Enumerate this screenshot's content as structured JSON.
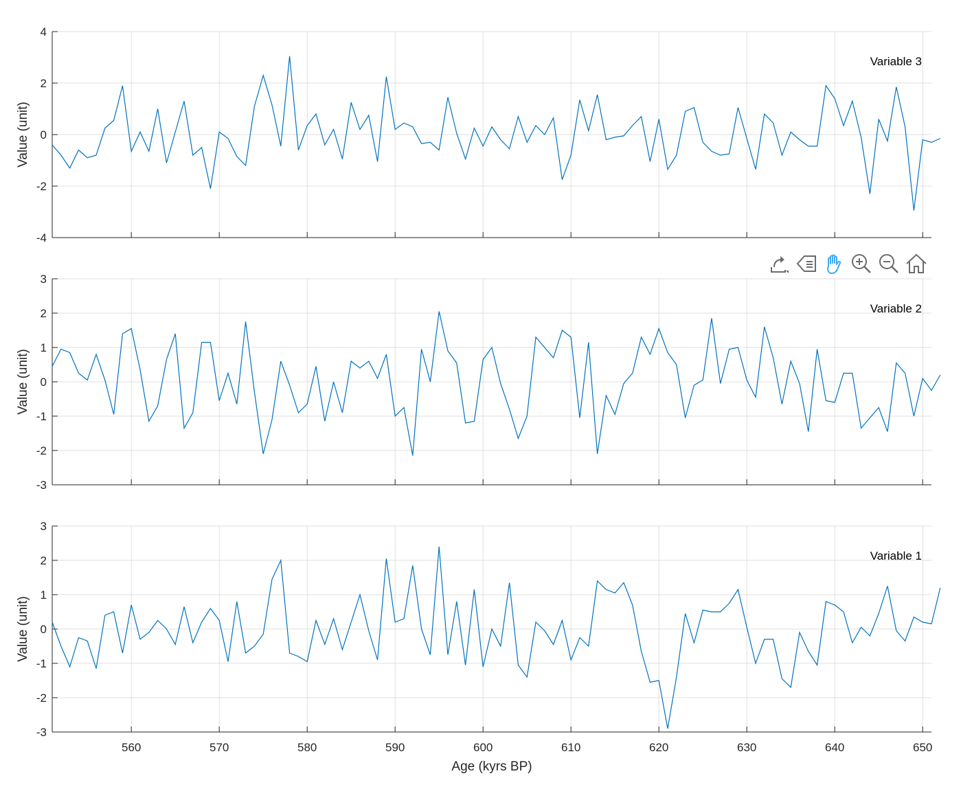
{
  "chart_data": [
    {
      "type": "line",
      "annotation": "Variable 3",
      "ylabel": "Value (unit)",
      "xlim": [
        551,
        651
      ],
      "ylim": [
        -4,
        4
      ],
      "yticks": [
        -4,
        -2,
        0,
        2,
        4
      ],
      "grid": true,
      "color": "#0072BD",
      "x_start": 551,
      "x_step": 1,
      "values": [
        -0.4,
        -0.8,
        -1.3,
        -0.6,
        -0.9,
        -0.8,
        0.25,
        0.55,
        1.9,
        -0.65,
        0.1,
        -0.65,
        1.0,
        -1.1,
        0.1,
        1.3,
        -0.8,
        -0.5,
        -2.1,
        0.1,
        -0.15,
        -0.85,
        -1.2,
        1.1,
        2.3,
        1.15,
        -0.45,
        3.05,
        -0.6,
        0.35,
        0.8,
        -0.4,
        0.2,
        -0.95,
        1.25,
        0.2,
        0.75,
        -1.05,
        2.25,
        0.2,
        0.45,
        0.3,
        -0.35,
        -0.3,
        -0.6,
        1.45,
        0.05,
        -0.95,
        0.25,
        -0.45,
        0.3,
        -0.2,
        -0.55,
        0.7,
        -0.3,
        0.35,
        0.0,
        0.65,
        -1.75,
        -0.8,
        1.35,
        0.15,
        1.55,
        -0.2,
        -0.1,
        -0.05,
        0.35,
        0.7,
        -1.05,
        0.6,
        -1.35,
        -0.8,
        0.9,
        1.05,
        -0.3,
        -0.65,
        -0.8,
        -0.75,
        1.05,
        -0.15,
        -1.35,
        0.8,
        0.45,
        -0.8,
        0.1,
        -0.2,
        -0.45,
        -0.45,
        1.9,
        1.4,
        0.35,
        1.3,
        -0.1,
        -2.3,
        0.6,
        -0.25,
        1.85,
        0.3,
        -2.95,
        -0.2,
        -0.3,
        -0.15
      ]
    },
    {
      "type": "line",
      "annotation": "Variable 2",
      "ylabel": "Value (unit)",
      "xlim": [
        551,
        651
      ],
      "ylim": [
        -3,
        3
      ],
      "yticks": [
        -3,
        -2,
        -1,
        0,
        1,
        2,
        3
      ],
      "grid": true,
      "color": "#0072BD",
      "x_start": 551,
      "x_step": 1,
      "values": [
        0.45,
        0.95,
        0.85,
        0.25,
        0.05,
        0.8,
        0.05,
        -0.95,
        1.4,
        1.55,
        0.35,
        -1.15,
        -0.7,
        0.65,
        1.4,
        -1.35,
        -0.9,
        1.15,
        1.15,
        -0.55,
        0.25,
        -0.65,
        1.75,
        -0.3,
        -2.1,
        -1.1,
        0.6,
        -0.1,
        -0.9,
        -0.65,
        0.45,
        -1.15,
        0.0,
        -0.9,
        0.6,
        0.4,
        0.6,
        0.1,
        0.8,
        -1.0,
        -0.75,
        -2.15,
        0.95,
        0.0,
        2.05,
        0.9,
        0.55,
        -1.2,
        -1.15,
        0.65,
        1.0,
        -0.05,
        -0.8,
        -1.65,
        -1.0,
        1.3,
        1.0,
        0.7,
        1.5,
        1.3,
        -1.05,
        1.15,
        -2.1,
        -0.4,
        -0.95,
        -0.05,
        0.25,
        1.3,
        0.8,
        1.55,
        0.85,
        0.5,
        -1.05,
        -0.1,
        0.05,
        1.85,
        -0.05,
        0.95,
        1.0,
        0.05,
        -0.45,
        1.6,
        0.7,
        -0.65,
        0.6,
        -0.05,
        -1.45,
        0.95,
        -0.55,
        -0.6,
        0.25,
        0.25,
        -1.35,
        -1.05,
        -0.75,
        -1.45,
        0.55,
        0.25,
        -1.0,
        0.1,
        -0.25,
        0.2
      ]
    },
    {
      "type": "line",
      "annotation": "Variable 1",
      "ylabel": "Value (unit)",
      "xlabel": "Age (kyrs BP)",
      "xlim": [
        551,
        651
      ],
      "ylim": [
        -3,
        3
      ],
      "yticks": [
        -3,
        -2,
        -1,
        0,
        1,
        2,
        3
      ],
      "xticks": [
        560,
        570,
        580,
        590,
        600,
        610,
        620,
        630,
        640,
        650
      ],
      "grid": true,
      "color": "#0072BD",
      "x_start": 551,
      "x_step": 1,
      "values": [
        0.2,
        -0.5,
        -1.1,
        -0.25,
        -0.35,
        -1.15,
        0.4,
        0.5,
        -0.7,
        0.7,
        -0.3,
        -0.1,
        0.25,
        0.0,
        -0.45,
        0.65,
        -0.4,
        0.2,
        0.6,
        0.25,
        -0.95,
        0.8,
        -0.7,
        -0.5,
        -0.15,
        1.45,
        2.0,
        -0.7,
        -0.8,
        -0.95,
        0.25,
        -0.45,
        0.3,
        -0.6,
        0.2,
        1.0,
        -0.05,
        -0.9,
        2.05,
        0.2,
        0.3,
        1.85,
        0.0,
        -0.75,
        2.4,
        -0.75,
        0.8,
        -1.05,
        1.15,
        -1.1,
        0.0,
        -0.5,
        1.35,
        -1.05,
        -1.4,
        0.2,
        -0.05,
        -0.45,
        0.25,
        -0.9,
        -0.25,
        -0.5,
        1.4,
        1.15,
        1.05,
        1.35,
        0.7,
        -0.65,
        -1.55,
        -1.5,
        -2.9,
        -1.4,
        0.45,
        -0.4,
        0.55,
        0.5,
        0.5,
        0.75,
        1.15,
        0.05,
        -1.0,
        -0.3,
        -0.3,
        -1.45,
        -1.7,
        -0.1,
        -0.65,
        -1.05,
        0.8,
        0.7,
        0.5,
        -0.4,
        0.05,
        -0.2,
        0.45,
        1.25,
        -0.05,
        -0.35,
        0.35,
        0.2,
        0.15,
        1.2
      ]
    }
  ],
  "toolbar": {
    "icons": [
      "export-icon",
      "brush-icon",
      "pan-hand-icon",
      "zoom-in-icon",
      "zoom-out-icon",
      "home-icon"
    ],
    "active_color": "#3fa9f5",
    "icon_color": "#6b6b6b"
  }
}
